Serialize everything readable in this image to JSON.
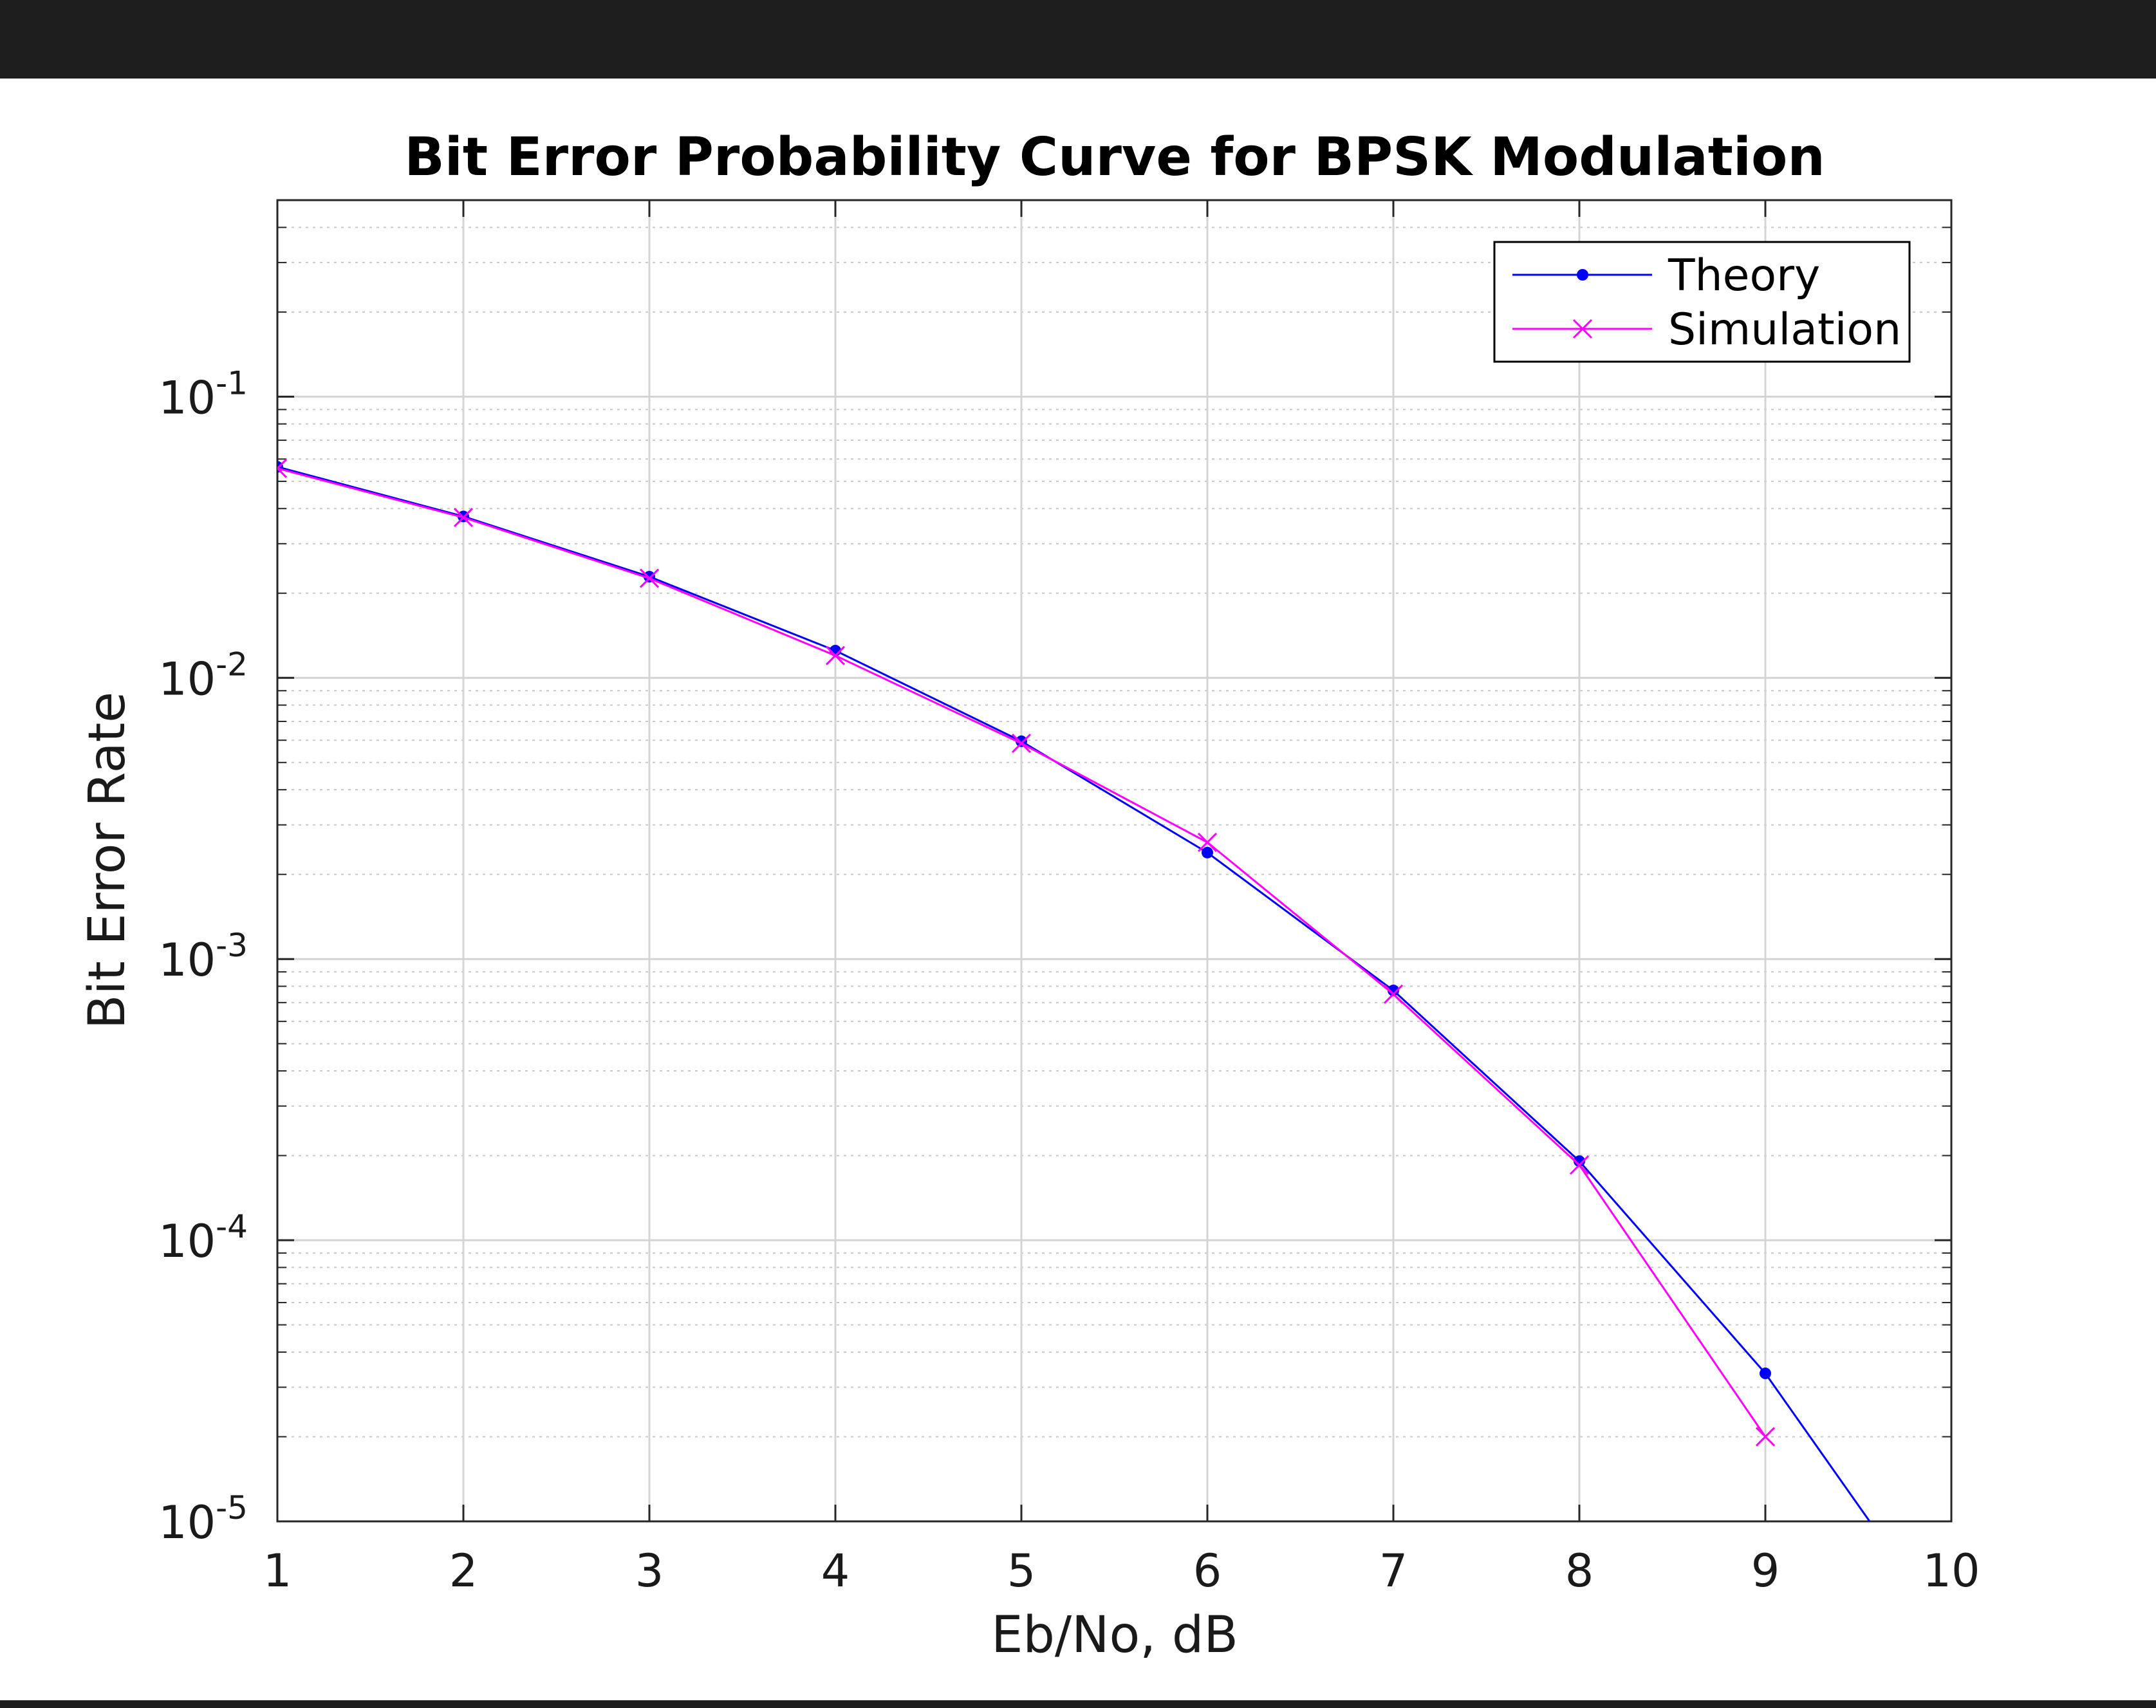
{
  "chart_data": {
    "type": "line",
    "title": "Bit Error Probability Curve for BPSK Modulation",
    "xlabel": "Eb/No, dB",
    "ylabel": "Bit Error Rate",
    "xlim": [
      1,
      10
    ],
    "ylim": [
      1e-05,
      0.5
    ],
    "yscale": "log",
    "grid": true,
    "legend_position": "top-right",
    "x_ticks": [
      1,
      2,
      3,
      4,
      5,
      6,
      7,
      8,
      9,
      10
    ],
    "y_ticks": [
      {
        "value": 0.1,
        "base": "10",
        "exp": "-1"
      },
      {
        "value": 0.01,
        "base": "10",
        "exp": "-2"
      },
      {
        "value": 0.001,
        "base": "10",
        "exp": "-3"
      },
      {
        "value": 0.0001,
        "base": "10",
        "exp": "-4"
      },
      {
        "value": 1e-05,
        "base": "10",
        "exp": "-5"
      }
    ],
    "series": [
      {
        "name": "Theory",
        "color": "#0000ff",
        "marker": "dot",
        "x": [
          1,
          2,
          3,
          4,
          5,
          6,
          7,
          8,
          9,
          10
        ],
        "y": [
          0.0563,
          0.0375,
          0.0229,
          0.0125,
          0.00595,
          0.00239,
          0.000773,
          0.000191,
          3.36e-05,
          3.87e-06
        ]
      },
      {
        "name": "Simulation",
        "color": "#ff00ff",
        "marker": "x",
        "x": [
          1,
          2,
          3,
          4,
          5,
          6,
          7,
          8,
          9
        ],
        "y": [
          0.0556,
          0.0372,
          0.0226,
          0.012,
          0.00585,
          0.0026,
          0.00075,
          0.000185,
          2e-05
        ]
      }
    ]
  }
}
